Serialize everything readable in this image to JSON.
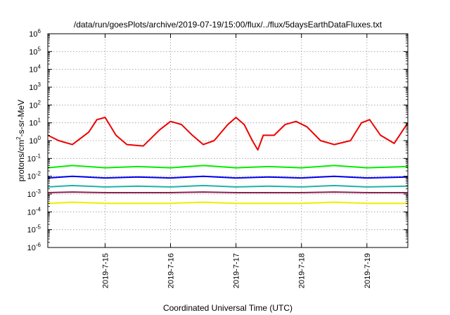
{
  "chart_data": {
    "type": "line",
    "title": "/data/run/goesPlots/archive/2019-07-19/15:00/flux/../flux/5daysEarthDataFluxes.txt",
    "xlabel": "Coordinated Universal Time (UTC)",
    "ylabel": "protons/cm²-s-sr-MeV",
    "ylabel_parts": [
      "protons/cm",
      "2",
      "-s-sr-MeV"
    ],
    "y_scale": "log",
    "ylim": [
      1e-06,
      1000000.0
    ],
    "y_ticks": [
      {
        "value": 1e-06,
        "base": "10",
        "exp": "-6"
      },
      {
        "value": 1e-05,
        "base": "10",
        "exp": "-5"
      },
      {
        "value": 0.0001,
        "base": "10",
        "exp": "-4"
      },
      {
        "value": 0.001,
        "base": "10",
        "exp": "-3"
      },
      {
        "value": 0.01,
        "base": "10",
        "exp": "-2"
      },
      {
        "value": 0.1,
        "base": "10",
        "exp": "-1"
      },
      {
        "value": 1,
        "base": "10",
        "exp": "0"
      },
      {
        "value": 10,
        "base": "10",
        "exp": "1"
      },
      {
        "value": 100,
        "base": "10",
        "exp": "2"
      },
      {
        "value": 1000,
        "base": "10",
        "exp": "3"
      },
      {
        "value": 10000,
        "base": "10",
        "exp": "4"
      },
      {
        "value": 100000,
        "base": "10",
        "exp": "5"
      },
      {
        "value": 1000000,
        "base": "10",
        "exp": "6"
      }
    ],
    "xlim": [
      "2019-07-14T03:00",
      "2019-07-19T15:00"
    ],
    "x_ticks": [
      "2019-7-15",
      "2019-7-16",
      "2019-7-17",
      "2019-7-18",
      "2019-7-19"
    ],
    "x_tick_dates": [
      "2019-07-15T00:00",
      "2019-07-16T00:00",
      "2019-07-17T00:00",
      "2019-07-18T00:00",
      "2019-07-19T00:00"
    ],
    "grid": true,
    "legend": "none",
    "series": [
      {
        "color": "#00ee00",
        "x": [
          "2019-07-14T03:00",
          "2019-07-14T12:00",
          "2019-07-15T00:00",
          "2019-07-15T12:00",
          "2019-07-16T00:00",
          "2019-07-16T12:00",
          "2019-07-17T00:00",
          "2019-07-17T12:00",
          "2019-07-18T00:00",
          "2019-07-18T12:00",
          "2019-07-19T00:00",
          "2019-07-19T15:00"
        ],
        "y": [
          0.03,
          0.04,
          0.03,
          0.035,
          0.03,
          0.04,
          0.03,
          0.035,
          0.03,
          0.04,
          0.03,
          0.035
        ]
      },
      {
        "color": "#0000ee",
        "x": [
          "2019-07-14T03:00",
          "2019-07-14T12:00",
          "2019-07-15T00:00",
          "2019-07-15T12:00",
          "2019-07-16T00:00",
          "2019-07-16T12:00",
          "2019-07-17T00:00",
          "2019-07-17T12:00",
          "2019-07-18T00:00",
          "2019-07-18T12:00",
          "2019-07-19T00:00",
          "2019-07-19T15:00"
        ],
        "y": [
          0.008,
          0.01,
          0.008,
          0.009,
          0.008,
          0.01,
          0.008,
          0.009,
          0.008,
          0.01,
          0.008,
          0.009
        ]
      },
      {
        "color": "#20b2aa",
        "x": [
          "2019-07-14T03:00",
          "2019-07-14T12:00",
          "2019-07-15T00:00",
          "2019-07-15T12:00",
          "2019-07-16T00:00",
          "2019-07-16T12:00",
          "2019-07-17T00:00",
          "2019-07-17T12:00",
          "2019-07-18T00:00",
          "2019-07-18T12:00",
          "2019-07-19T00:00",
          "2019-07-19T15:00"
        ],
        "y": [
          0.0025,
          0.003,
          0.0025,
          0.0028,
          0.0025,
          0.003,
          0.0025,
          0.0028,
          0.0025,
          0.003,
          0.0025,
          0.0028
        ]
      },
      {
        "color": "#8b2252",
        "x": [
          "2019-07-14T03:00",
          "2019-07-14T12:00",
          "2019-07-15T00:00",
          "2019-07-15T12:00",
          "2019-07-16T00:00",
          "2019-07-16T12:00",
          "2019-07-17T00:00",
          "2019-07-17T12:00",
          "2019-07-18T00:00",
          "2019-07-18T12:00",
          "2019-07-19T00:00",
          "2019-07-19T15:00"
        ],
        "y": [
          0.0012,
          0.0013,
          0.0012,
          0.0012,
          0.0012,
          0.0013,
          0.0012,
          0.0012,
          0.0012,
          0.0013,
          0.0012,
          0.0012
        ]
      },
      {
        "color": "#eeee00",
        "x": [
          "2019-07-14T03:00",
          "2019-07-14T12:00",
          "2019-07-15T00:00",
          "2019-07-15T12:00",
          "2019-07-16T00:00",
          "2019-07-16T12:00",
          "2019-07-17T00:00",
          "2019-07-17T12:00",
          "2019-07-18T00:00",
          "2019-07-18T12:00",
          "2019-07-19T00:00",
          "2019-07-19T15:00"
        ],
        "y": [
          0.0003,
          0.00035,
          0.0003,
          0.0003,
          0.0003,
          0.00035,
          0.0003,
          0.0003,
          0.0003,
          0.00035,
          0.0003,
          0.0003
        ]
      },
      {
        "color": "#ee0000",
        "x": [
          "2019-07-14T03:00",
          "2019-07-14T07:00",
          "2019-07-14T12:00",
          "2019-07-14T18:00",
          "2019-07-14T21:00",
          "2019-07-15T00:00",
          "2019-07-15T04:00",
          "2019-07-15T08:00",
          "2019-07-15T14:00",
          "2019-07-15T20:00",
          "2019-07-16T00:00",
          "2019-07-16T04:00",
          "2019-07-16T08:00",
          "2019-07-16T12:00",
          "2019-07-16T16:00",
          "2019-07-16T21:00",
          "2019-07-17T00:00",
          "2019-07-17T03:00",
          "2019-07-17T06:00",
          "2019-07-17T08:00",
          "2019-07-17T10:00",
          "2019-07-17T14:00",
          "2019-07-17T18:00",
          "2019-07-17T22:00",
          "2019-07-18T02:00",
          "2019-07-18T07:00",
          "2019-07-18T12:00",
          "2019-07-18T18:00",
          "2019-07-18T22:00",
          "2019-07-19T01:00",
          "2019-07-19T05:00",
          "2019-07-19T10:00",
          "2019-07-19T15:00"
        ],
        "y": [
          2.0,
          1.0,
          0.6,
          3.0,
          15.0,
          20.0,
          2.0,
          0.6,
          0.5,
          4.0,
          12.0,
          8.0,
          2.0,
          0.6,
          1.0,
          8.0,
          20.0,
          8.0,
          1.0,
          0.3,
          2.0,
          2.0,
          8.0,
          12.0,
          6.0,
          1.0,
          0.6,
          1.0,
          10.0,
          15.0,
          2.0,
          0.7,
          10.0
        ]
      }
    ]
  }
}
